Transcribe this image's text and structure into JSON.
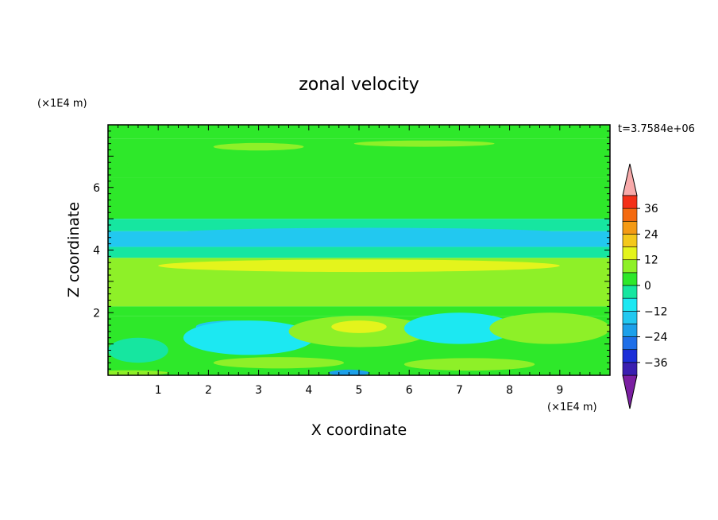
{
  "chart_data": {
    "type": "heatmap",
    "title": "zonal velocity",
    "xlabel": "X coordinate",
    "ylabel": "Z coordinate",
    "x_unit": "(×1E4 m)",
    "y_unit": "(×1E4 m)",
    "time_label": "t=3.7584e+06",
    "xlim": [
      0,
      10
    ],
    "ylim": [
      0,
      8
    ],
    "x_ticks": [
      1,
      2,
      3,
      4,
      5,
      6,
      7,
      8,
      9
    ],
    "y_ticks": [
      2,
      4,
      6
    ],
    "colorbar": {
      "levels": [
        -42,
        -36,
        -30,
        -24,
        -18,
        -12,
        -6,
        0,
        6,
        12,
        18,
        24,
        30,
        36,
        42
      ],
      "tick_values": [
        36,
        24,
        12,
        0,
        -12,
        -24,
        -36
      ],
      "tick_labels": [
        "36",
        "24",
        "12",
        "0",
        "−12",
        "−24",
        "−36"
      ],
      "colors": [
        "#7b1fa2",
        "#3a1fb0",
        "#1c2fd8",
        "#1f6fe8",
        "#1ca0ea",
        "#22c8f0",
        "#1ce8f2",
        "#16e6a0",
        "#2ee82a",
        "#8ef028",
        "#e4f41c",
        "#f4c81a",
        "#f49a14",
        "#f46a10",
        "#f43018",
        "#f8aaaa"
      ],
      "extend": "both"
    },
    "bands": [
      {
        "z": [
          7.55,
          8.0
        ],
        "u": 3
      },
      {
        "z": [
          6.3,
          7.55
        ],
        "u": 1
      },
      {
        "z": [
          5.0,
          6.3
        ],
        "u": 2
      },
      {
        "z": [
          4.6,
          5.0
        ],
        "u": -5
      },
      {
        "z": [
          4.1,
          4.6
        ],
        "u": -13
      },
      {
        "z": [
          3.75,
          4.1
        ],
        "u": -6
      },
      {
        "z": [
          2.2,
          3.75
        ],
        "u": 10
      },
      {
        "z": [
          1.9,
          2.2
        ],
        "u": 4
      },
      {
        "z": [
          0.0,
          1.9
        ],
        "u": 1
      }
    ],
    "features": [
      {
        "x": 3.0,
        "z": 7.3,
        "rx": 0.9,
        "rz": 0.12,
        "u": 6
      },
      {
        "x": 6.3,
        "z": 7.4,
        "rx": 1.4,
        "rz": 0.1,
        "u": 6
      },
      {
        "x": 8.7,
        "z": 6.75,
        "rx": 1.3,
        "rz": 0.12,
        "u": 5
      },
      {
        "x": 0.1,
        "z": 6.7,
        "rx": 0.35,
        "rz": 0.12,
        "u": 5
      },
      {
        "x": 5.2,
        "z": 4.55,
        "rx": 3.8,
        "rz": 0.16,
        "u": -18
      },
      {
        "x": 5.0,
        "z": 3.5,
        "rx": 4.0,
        "rz": 0.2,
        "u": 14
      },
      {
        "x": 2.5,
        "z": 1.55,
        "rx": 0.75,
        "rz": 0.2,
        "u": -16
      },
      {
        "x": 2.8,
        "z": 1.2,
        "rx": 1.3,
        "rz": 0.55,
        "u": -8
      },
      {
        "x": 5.0,
        "z": 1.4,
        "rx": 1.4,
        "rz": 0.5,
        "u": 9
      },
      {
        "x": 5.0,
        "z": 1.55,
        "rx": 0.55,
        "rz": 0.2,
        "u": 14
      },
      {
        "x": 7.0,
        "z": 1.5,
        "rx": 1.1,
        "rz": 0.5,
        "u": -8
      },
      {
        "x": 8.8,
        "z": 1.5,
        "rx": 1.2,
        "rz": 0.5,
        "u": 6
      },
      {
        "x": 0.6,
        "z": 0.8,
        "rx": 0.6,
        "rz": 0.4,
        "u": -6
      },
      {
        "x": 3.4,
        "z": 0.4,
        "rx": 1.3,
        "rz": 0.18,
        "u": 7
      },
      {
        "x": 7.2,
        "z": 0.35,
        "rx": 1.3,
        "rz": 0.2,
        "u": 9
      },
      {
        "x": 4.8,
        "z": 0.08,
        "rx": 0.4,
        "rz": 0.1,
        "u": -20
      },
      {
        "x": 0.4,
        "z": 0.08,
        "rx": 0.8,
        "rz": 0.08,
        "u": 11
      }
    ]
  }
}
